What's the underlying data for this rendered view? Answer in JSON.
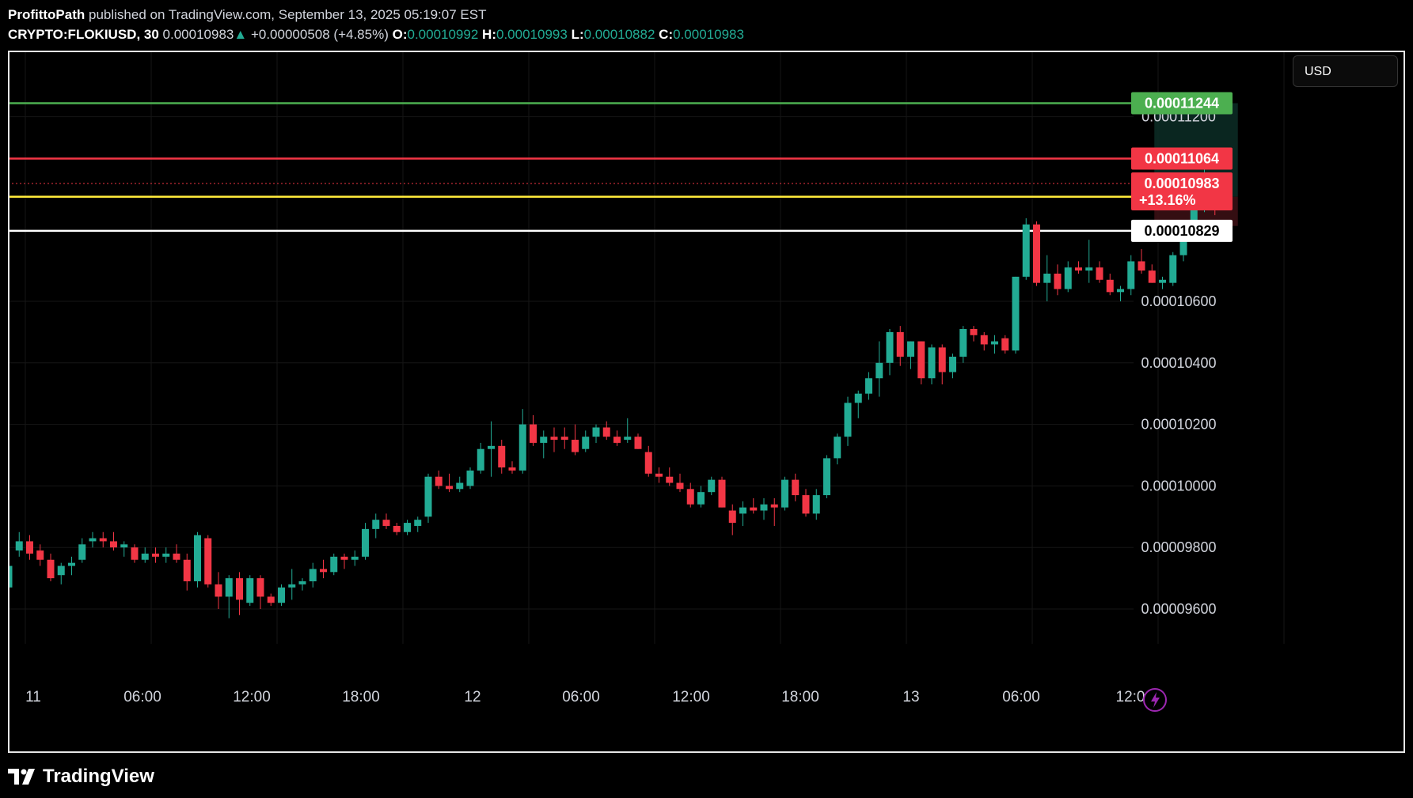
{
  "header": {
    "line1": {
      "author": "ProfittoPath",
      "rest": "published on TradingView.com, September 13, 2025 05:19:07 EST"
    },
    "line2": {
      "symbol": "CRYPTO:FLOKIUSD, 30",
      "price": "0.00010983",
      "arrow": "▲",
      "change": "+0.00000508 (+4.85%)",
      "o_label": "O:",
      "o_value": "0.00010992",
      "h_label": "H:",
      "h_value": "0.00010993",
      "l_label": "L:",
      "l_value": "0.00010882",
      "c_label": "C:",
      "c_value": "0.00010983"
    }
  },
  "currency_button": "USD",
  "footer": {
    "brand": "TradingView",
    "logo_icon": "tradingview-logo-icon"
  },
  "colors": {
    "up": "#22ab94",
    "down": "#f23645",
    "green_line": "#4caf50",
    "red_line": "#f23645",
    "yellow_line": "#ffeb3b",
    "white_line": "#ffffff",
    "background": "#000000"
  },
  "chart_data": {
    "type": "candlestick",
    "ylim": [
      9.55e-05,
      0.0001145
    ],
    "ytick_labels": [
      "0.00009600",
      "0.00009800",
      "0.00010000",
      "0.00010200",
      "0.00010400",
      "0.00010600",
      "0.00011200"
    ],
    "ytick_values": [
      9.6e-05,
      9.8e-05,
      0.0001,
      0.000102,
      0.000104,
      0.000106,
      0.000112
    ],
    "xtick_labels": [
      "11",
      "06:00",
      "12:00",
      "18:00",
      "12",
      "06:00",
      "12:00",
      "18:00",
      "13",
      "06:00",
      "12:0"
    ],
    "xtick_index": [
      0,
      12,
      24,
      36,
      48,
      60,
      72,
      84,
      96,
      108,
      120
    ],
    "horizontal_lines": [
      {
        "value": 0.00011244,
        "label": "0.00011244",
        "kind": "green"
      },
      {
        "value": 0.00011064,
        "label": "0.00011064",
        "kind": "red"
      },
      {
        "value": 0.0001094,
        "label": "",
        "kind": "yellow"
      },
      {
        "value": 0.00010829,
        "label": "0.00010829",
        "kind": "white"
      }
    ],
    "last_price": {
      "value": 0.00010983,
      "label": "0.00010983",
      "change": "+13.16%"
    },
    "position": {
      "entry": 0.0001094,
      "target": 0.00011244,
      "stop": 0.00010845,
      "start_index": 109,
      "end_index": 115
    },
    "ohlc": [
      [
        9.67e-05,
        9.75e-05,
        9.65e-05,
        9.74e-05
      ],
      [
        9.79e-05,
        9.85e-05,
        9.77e-05,
        9.82e-05
      ],
      [
        9.82e-05,
        9.84e-05,
        9.76e-05,
        9.78e-05
      ],
      [
        9.79e-05,
        9.81e-05,
        9.74e-05,
        9.76e-05
      ],
      [
        9.76e-05,
        9.78e-05,
        9.69e-05,
        9.7e-05
      ],
      [
        9.71e-05,
        9.75e-05,
        9.68e-05,
        9.74e-05
      ],
      [
        9.74e-05,
        9.77e-05,
        9.71e-05,
        9.75e-05
      ],
      [
        9.76e-05,
        9.83e-05,
        9.75e-05,
        9.81e-05
      ],
      [
        9.82e-05,
        9.85e-05,
        9.8e-05,
        9.83e-05
      ],
      [
        9.83e-05,
        9.85e-05,
        9.8e-05,
        9.82e-05
      ],
      [
        9.82e-05,
        9.85e-05,
        9.79e-05,
        9.8e-05
      ],
      [
        9.8e-05,
        9.82e-05,
        9.77e-05,
        9.81e-05
      ],
      [
        9.8e-05,
        9.81e-05,
        9.75e-05,
        9.76e-05
      ],
      [
        9.76e-05,
        9.8e-05,
        9.75e-05,
        9.78e-05
      ],
      [
        9.78e-05,
        9.8e-05,
        9.75e-05,
        9.77e-05
      ],
      [
        9.77e-05,
        9.8e-05,
        9.75e-05,
        9.78e-05
      ],
      [
        9.78e-05,
        9.81e-05,
        9.75e-05,
        9.76e-05
      ],
      [
        9.76e-05,
        9.78e-05,
        9.66e-05,
        9.69e-05
      ],
      [
        9.69e-05,
        9.85e-05,
        9.67e-05,
        9.84e-05
      ],
      [
        9.83e-05,
        9.84e-05,
        9.67e-05,
        9.68e-05
      ],
      [
        9.68e-05,
        9.72e-05,
        9.6e-05,
        9.64e-05
      ],
      [
        9.64e-05,
        9.71e-05,
        9.57e-05,
        9.7e-05
      ],
      [
        9.7e-05,
        9.72e-05,
        9.58e-05,
        9.63e-05
      ],
      [
        9.62e-05,
        9.71e-05,
        9.61e-05,
        9.7e-05
      ],
      [
        9.7e-05,
        9.71e-05,
        9.6e-05,
        9.64e-05
      ],
      [
        9.64e-05,
        9.65e-05,
        9.61e-05,
        9.62e-05
      ],
      [
        9.62e-05,
        9.68e-05,
        9.61e-05,
        9.67e-05
      ],
      [
        9.67e-05,
        9.73e-05,
        9.63e-05,
        9.68e-05
      ],
      [
        9.68e-05,
        9.7e-05,
        9.66e-05,
        9.69e-05
      ],
      [
        9.69e-05,
        9.75e-05,
        9.67e-05,
        9.73e-05
      ],
      [
        9.73e-05,
        9.76e-05,
        9.7e-05,
        9.72e-05
      ],
      [
        9.72e-05,
        9.78e-05,
        9.71e-05,
        9.77e-05
      ],
      [
        9.77e-05,
        9.78e-05,
        9.73e-05,
        9.76e-05
      ],
      [
        9.76e-05,
        9.79e-05,
        9.74e-05,
        9.77e-05
      ],
      [
        9.77e-05,
        9.88e-05,
        9.76e-05,
        9.86e-05
      ],
      [
        9.86e-05,
        9.91e-05,
        9.83e-05,
        9.89e-05
      ],
      [
        9.89e-05,
        9.91e-05,
        9.86e-05,
        9.87e-05
      ],
      [
        9.87e-05,
        9.88e-05,
        9.84e-05,
        9.85e-05
      ],
      [
        9.85e-05,
        9.89e-05,
        9.84e-05,
        9.88e-05
      ],
      [
        9.87e-05,
        9.9e-05,
        9.85e-05,
        9.89e-05
      ],
      [
        9.9e-05,
        0.0001004,
        9.88e-05,
        0.0001003
      ],
      [
        0.0001003,
        0.0001005,
        9.99e-05,
        0.0001
      ],
      [
        0.0001,
        0.0001004,
        9.98e-05,
        9.99e-05
      ],
      [
        9.99e-05,
        0.0001003,
        9.98e-05,
        0.0001001
      ],
      [
        0.0001,
        0.0001006,
        9.99e-05,
        0.0001005
      ],
      [
        0.0001005,
        0.0001014,
        0.0001004,
        0.0001012
      ],
      [
        0.0001012,
        0.0001021,
        0.0001003,
        0.0001013
      ],
      [
        0.0001013,
        0.0001015,
        0.0001004,
        0.0001006
      ],
      [
        0.0001006,
        0.0001008,
        0.0001004,
        0.0001005
      ],
      [
        0.0001005,
        0.0001025,
        0.0001004,
        0.000102
      ],
      [
        0.000102,
        0.0001023,
        0.0001013,
        0.0001014
      ],
      [
        0.0001014,
        0.0001018,
        0.0001009,
        0.0001016
      ],
      [
        0.0001016,
        0.0001019,
        0.0001011,
        0.0001015
      ],
      [
        0.0001016,
        0.0001019,
        0.0001012,
        0.0001015
      ],
      [
        0.0001015,
        0.000102,
        0.000101,
        0.0001011
      ],
      [
        0.0001012,
        0.0001018,
        0.0001011,
        0.0001016
      ],
      [
        0.0001016,
        0.000102,
        0.0001014,
        0.0001019
      ],
      [
        0.0001019,
        0.0001021,
        0.0001015,
        0.0001016
      ],
      [
        0.0001016,
        0.0001018,
        0.0001013,
        0.0001014
      ],
      [
        0.0001015,
        0.0001022,
        0.0001014,
        0.0001016
      ],
      [
        0.0001016,
        0.0001017,
        0.0001012,
        0.0001012
      ],
      [
        0.0001011,
        0.0001013,
        0.0001003,
        0.0001004
      ],
      [
        0.0001004,
        0.0001006,
        0.0001001,
        0.0001003
      ],
      [
        0.0001003,
        0.0001006,
        0.0001,
        0.0001001
      ],
      [
        0.0001001,
        0.0001004,
        9.98e-05,
        9.99e-05
      ],
      [
        9.99e-05,
        0.0001001,
        9.93e-05,
        9.94e-05
      ],
      [
        9.94e-05,
        0.0001,
        9.93e-05,
        9.98e-05
      ],
      [
        9.98e-05,
        0.0001003,
        9.97e-05,
        0.0001002
      ],
      [
        0.0001002,
        0.0001003,
        9.93e-05,
        9.93e-05
      ],
      [
        9.92e-05,
        9.94e-05,
        9.84e-05,
        9.88e-05
      ],
      [
        9.91e-05,
        9.95e-05,
        9.87e-05,
        9.93e-05
      ],
      [
        9.93e-05,
        9.96e-05,
        9.91e-05,
        9.92e-05
      ],
      [
        9.92e-05,
        9.96e-05,
        9.89e-05,
        9.94e-05
      ],
      [
        9.94e-05,
        9.96e-05,
        9.87e-05,
        9.93e-05
      ],
      [
        9.93e-05,
        0.0001003,
        9.92e-05,
        0.0001002
      ],
      [
        0.0001002,
        0.0001004,
        9.95e-05,
        9.97e-05
      ],
      [
        9.97e-05,
        9.99e-05,
        9.9e-05,
        9.91e-05
      ],
      [
        9.91e-05,
        9.99e-05,
        9.89e-05,
        9.97e-05
      ],
      [
        9.97e-05,
        0.000101,
        9.96e-05,
        0.0001009
      ],
      [
        0.0001009,
        0.0001017,
        0.0001007,
        0.0001016
      ],
      [
        0.0001016,
        0.0001029,
        0.0001013,
        0.0001027
      ],
      [
        0.0001027,
        0.0001031,
        0.0001022,
        0.000103
      ],
      [
        0.000103,
        0.0001037,
        0.0001028,
        0.0001035
      ],
      [
        0.0001035,
        0.0001047,
        0.0001029,
        0.000104
      ],
      [
        0.000104,
        0.0001051,
        0.0001036,
        0.000105
      ],
      [
        0.000105,
        0.0001052,
        0.0001039,
        0.0001042
      ],
      [
        0.0001042,
        0.0001047,
        0.0001038,
        0.0001047
      ],
      [
        0.0001047,
        0.0001047,
        0.0001033,
        0.0001035
      ],
      [
        0.0001035,
        0.0001046,
        0.0001033,
        0.0001045
      ],
      [
        0.0001045,
        0.0001046,
        0.0001033,
        0.0001037
      ],
      [
        0.0001037,
        0.0001043,
        0.0001035,
        0.0001042
      ],
      [
        0.0001042,
        0.0001052,
        0.000104,
        0.0001051
      ],
      [
        0.0001051,
        0.0001052,
        0.0001047,
        0.0001049
      ],
      [
        0.0001049,
        0.000105,
        0.0001044,
        0.0001046
      ],
      [
        0.0001046,
        0.0001049,
        0.0001043,
        0.0001047
      ],
      [
        0.0001048,
        0.0001049,
        0.0001043,
        0.0001044
      ],
      [
        0.0001044,
        0.0001068,
        0.0001043,
        0.0001068
      ],
      [
        0.0001068,
        0.0001087,
        0.0001067,
        0.0001085
      ],
      [
        0.0001085,
        0.0001086,
        0.0001065,
        0.0001066
      ],
      [
        0.0001066,
        0.0001075,
        0.000106,
        0.0001069
      ],
      [
        0.0001069,
        0.0001072,
        0.0001062,
        0.0001064
      ],
      [
        0.0001064,
        0.0001073,
        0.0001063,
        0.0001071
      ],
      [
        0.0001071,
        0.0001073,
        0.0001069,
        0.000107
      ],
      [
        0.000107,
        0.000108,
        0.0001066,
        0.0001071
      ],
      [
        0.0001071,
        0.0001073,
        0.0001066,
        0.0001067
      ],
      [
        0.0001067,
        0.0001069,
        0.0001062,
        0.0001063
      ],
      [
        0.0001063,
        0.0001065,
        0.000106,
        0.0001064
      ],
      [
        0.0001064,
        0.0001075,
        0.0001062,
        0.0001073
      ],
      [
        0.0001073,
        0.0001077,
        0.0001069,
        0.000107
      ],
      [
        0.000107,
        0.0001072,
        0.0001066,
        0.0001066
      ],
      [
        0.0001066,
        0.0001068,
        0.0001064,
        0.0001067
      ],
      [
        0.0001066,
        0.0001076,
        0.0001065,
        0.0001075
      ],
      [
        0.0001075,
        0.0001084,
        0.0001073,
        0.0001082
      ],
      [
        0.0001082,
        0.0001101,
        0.000108,
        0.00011
      ],
      [
        0.0001099,
        0.0001106,
        0.0001089,
        0.0001099
      ],
      [
        0.0001099,
        0.0001099,
        0.0001088,
        0.0001098
      ]
    ]
  }
}
